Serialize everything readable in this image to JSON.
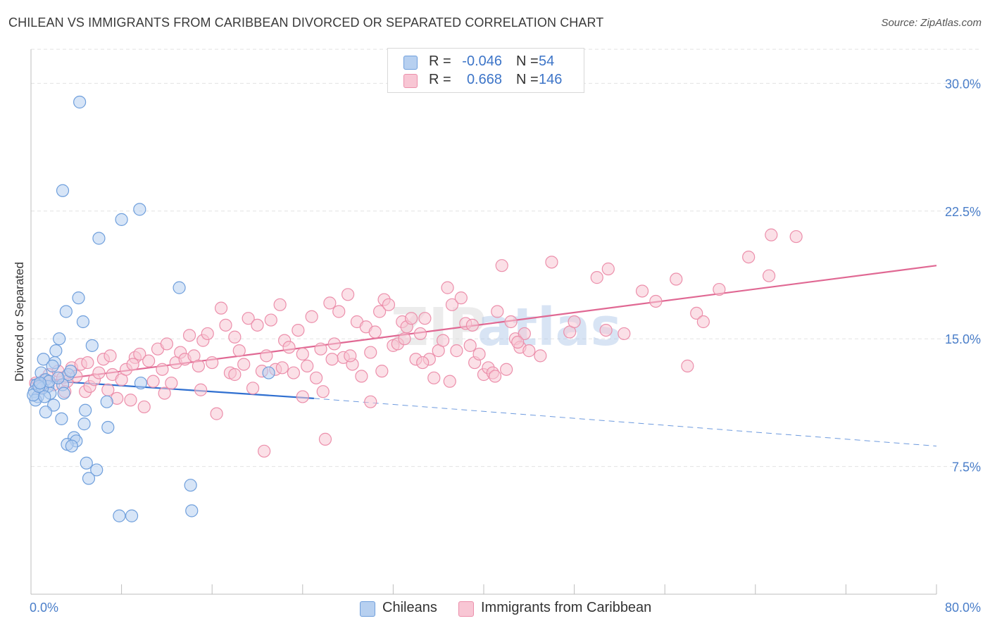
{
  "header": {
    "title": "CHILEAN VS IMMIGRANTS FROM CARIBBEAN DIVORCED OR SEPARATED CORRELATION CHART",
    "source": "Source: ZipAtlas.com"
  },
  "legend_top": {
    "rows": [
      {
        "r_label": "R =",
        "r_value": "-0.046",
        "n_label": "N =",
        "n_value": "54"
      },
      {
        "r_label": "R =",
        "r_value": "0.668",
        "n_label": "N =",
        "n_value": "146"
      }
    ]
  },
  "legend_bottom": {
    "items": [
      {
        "label": "Chileans"
      },
      {
        "label": "Immigrants from Caribbean"
      }
    ]
  },
  "watermark": {
    "part1": "ZIP",
    "part2": "atlas"
  },
  "chart_data": {
    "type": "scatter",
    "title": "CHILEAN VS IMMIGRANTS FROM CARIBBEAN DIVORCED OR SEPARATED CORRELATION CHART",
    "xlabel": "",
    "ylabel": "Divorced or Separated",
    "xlim": [
      0,
      80
    ],
    "ylim": [
      0,
      32
    ],
    "x_tick_labels": [
      "0.0%",
      "80.0%"
    ],
    "y_ticks": [
      7.5,
      15.0,
      22.5,
      30.0
    ],
    "y_tick_labels": [
      "7.5%",
      "15.0%",
      "22.5%",
      "30.0%"
    ],
    "grid": true,
    "legend_position": "bottom",
    "colors": {
      "chileans_fill": "#b7d0f0",
      "chileans_stroke": "#6f9fdc",
      "chileans_line": "#2f6fd0",
      "caribbean_fill": "#f8c6d4",
      "caribbean_stroke": "#ec8fab",
      "caribbean_line": "#e06893",
      "tick_text": "#4a7ec9"
    },
    "series": [
      {
        "name": "Chileans",
        "r": -0.046,
        "n": 54,
        "trend": {
          "solid": [
            [
              0,
              12.6
            ],
            [
              25,
              11.5
            ]
          ],
          "dashed": [
            [
              25,
              11.5
            ],
            [
              80,
              8.7
            ]
          ]
        },
        "points": [
          [
            4.3,
            28.9
          ],
          [
            2.8,
            23.7
          ],
          [
            9.6,
            22.6
          ],
          [
            8.0,
            22.0
          ],
          [
            6.0,
            20.9
          ],
          [
            13.1,
            18.0
          ],
          [
            4.2,
            17.4
          ],
          [
            3.1,
            16.6
          ],
          [
            4.6,
            16.0
          ],
          [
            2.5,
            15.0
          ],
          [
            5.4,
            14.6
          ],
          [
            2.2,
            14.3
          ],
          [
            1.1,
            13.8
          ],
          [
            2.1,
            13.6
          ],
          [
            1.9,
            13.4
          ],
          [
            0.9,
            13.0
          ],
          [
            3.3,
            12.9
          ],
          [
            1.3,
            12.6
          ],
          [
            0.5,
            12.3
          ],
          [
            1.5,
            12.2
          ],
          [
            2.8,
            12.3
          ],
          [
            9.7,
            12.4
          ],
          [
            0.3,
            11.9
          ],
          [
            1.7,
            11.8
          ],
          [
            2.9,
            11.8
          ],
          [
            0.6,
            11.6
          ],
          [
            0.4,
            11.4
          ],
          [
            6.7,
            11.3
          ],
          [
            2.0,
            11.1
          ],
          [
            4.8,
            10.8
          ],
          [
            1.3,
            10.7
          ],
          [
            2.7,
            10.3
          ],
          [
            4.7,
            10.0
          ],
          [
            6.8,
            9.8
          ],
          [
            3.8,
            9.2
          ],
          [
            4.0,
            9.0
          ],
          [
            3.2,
            8.8
          ],
          [
            3.6,
            8.7
          ],
          [
            4.9,
            7.7
          ],
          [
            5.8,
            7.3
          ],
          [
            5.1,
            6.8
          ],
          [
            14.1,
            6.4
          ],
          [
            7.8,
            4.6
          ],
          [
            8.9,
            4.6
          ],
          [
            14.2,
            4.9
          ],
          [
            21.0,
            13.0
          ],
          [
            1.0,
            12.1
          ],
          [
            0.2,
            11.7
          ],
          [
            1.6,
            12.5
          ],
          [
            0.7,
            12.2
          ],
          [
            2.4,
            12.7
          ],
          [
            3.5,
            13.1
          ],
          [
            1.2,
            11.6
          ],
          [
            0.8,
            12.4
          ]
        ]
      },
      {
        "name": "Immigrants from Caribbean",
        "r": 0.668,
        "n": 146,
        "trend": {
          "solid": [
            [
              0,
              12.4
            ],
            [
              80,
              19.3
            ]
          ]
        },
        "points": [
          [
            0.4,
            12.4
          ],
          [
            0.8,
            12.1
          ],
          [
            1.2,
            12.6
          ],
          [
            1.6,
            12.9
          ],
          [
            2.0,
            12.3
          ],
          [
            2.4,
            13.1
          ],
          [
            2.8,
            12.7
          ],
          [
            3.2,
            12.5
          ],
          [
            3.6,
            13.3
          ],
          [
            4.0,
            12.8
          ],
          [
            4.4,
            13.5
          ],
          [
            4.8,
            11.9
          ],
          [
            5.2,
            12.2
          ],
          [
            5.6,
            12.6
          ],
          [
            6.0,
            13.0
          ],
          [
            6.4,
            13.8
          ],
          [
            6.8,
            12.0
          ],
          [
            7.2,
            12.9
          ],
          [
            7.6,
            11.5
          ],
          [
            8.0,
            12.6
          ],
          [
            8.4,
            13.2
          ],
          [
            8.8,
            11.4
          ],
          [
            9.2,
            13.9
          ],
          [
            9.6,
            14.1
          ],
          [
            10.0,
            11.0
          ],
          [
            10.4,
            13.7
          ],
          [
            10.8,
            12.5
          ],
          [
            11.2,
            14.4
          ],
          [
            11.6,
            13.2
          ],
          [
            12.0,
            14.7
          ],
          [
            12.4,
            12.4
          ],
          [
            12.8,
            13.6
          ],
          [
            13.2,
            14.2
          ],
          [
            13.6,
            13.8
          ],
          [
            14.0,
            15.2
          ],
          [
            14.4,
            14.0
          ],
          [
            14.8,
            13.4
          ],
          [
            15.2,
            14.9
          ],
          [
            15.6,
            15.3
          ],
          [
            16.0,
            13.6
          ],
          [
            16.4,
            10.6
          ],
          [
            16.8,
            16.8
          ],
          [
            17.2,
            15.8
          ],
          [
            17.6,
            13.0
          ],
          [
            18.0,
            15.1
          ],
          [
            18.4,
            14.3
          ],
          [
            18.8,
            13.5
          ],
          [
            19.2,
            16.2
          ],
          [
            19.6,
            12.1
          ],
          [
            20.0,
            15.8
          ],
          [
            20.4,
            13.1
          ],
          [
            20.8,
            14.0
          ],
          [
            21.2,
            16.1
          ],
          [
            21.6,
            13.2
          ],
          [
            22.0,
            17.0
          ],
          [
            22.4,
            14.9
          ],
          [
            22.8,
            14.5
          ],
          [
            23.2,
            13.0
          ],
          [
            23.6,
            15.5
          ],
          [
            24.0,
            14.1
          ],
          [
            24.4,
            13.4
          ],
          [
            24.8,
            16.3
          ],
          [
            25.2,
            12.7
          ],
          [
            25.6,
            14.4
          ],
          [
            26.0,
            9.1
          ],
          [
            26.4,
            17.1
          ],
          [
            26.8,
            14.7
          ],
          [
            27.2,
            16.6
          ],
          [
            27.6,
            13.9
          ],
          [
            28.0,
            17.6
          ],
          [
            28.4,
            13.5
          ],
          [
            28.8,
            16.0
          ],
          [
            29.2,
            12.8
          ],
          [
            29.6,
            15.7
          ],
          [
            30.0,
            14.2
          ],
          [
            30.4,
            15.4
          ],
          [
            30.8,
            16.6
          ],
          [
            31.2,
            17.3
          ],
          [
            31.6,
            17.0
          ],
          [
            32.0,
            14.6
          ],
          [
            32.4,
            14.7
          ],
          [
            32.8,
            16.0
          ],
          [
            33.2,
            15.7
          ],
          [
            33.6,
            16.2
          ],
          [
            34.0,
            13.8
          ],
          [
            34.4,
            15.3
          ],
          [
            34.8,
            16.2
          ],
          [
            35.2,
            13.8
          ],
          [
            35.6,
            12.7
          ],
          [
            36.0,
            14.3
          ],
          [
            36.4,
            14.9
          ],
          [
            36.8,
            18.0
          ],
          [
            37.2,
            17.0
          ],
          [
            37.6,
            14.3
          ],
          [
            38.0,
            17.4
          ],
          [
            38.4,
            15.9
          ],
          [
            38.8,
            14.6
          ],
          [
            39.2,
            13.6
          ],
          [
            39.6,
            14.1
          ],
          [
            40.0,
            12.9
          ],
          [
            40.4,
            13.3
          ],
          [
            40.8,
            13.0
          ],
          [
            41.2,
            16.6
          ],
          [
            41.6,
            19.3
          ],
          [
            42.0,
            13.2
          ],
          [
            42.4,
            16.0
          ],
          [
            42.8,
            15.0
          ],
          [
            43.2,
            14.5
          ],
          [
            43.6,
            15.3
          ],
          [
            44.0,
            14.3
          ],
          [
            46.0,
            19.5
          ],
          [
            47.6,
            15.4
          ],
          [
            48.0,
            16.0
          ],
          [
            50.0,
            18.6
          ],
          [
            50.8,
            15.5
          ],
          [
            51.0,
            19.1
          ],
          [
            52.4,
            15.3
          ],
          [
            54.0,
            17.8
          ],
          [
            55.2,
            17.2
          ],
          [
            57.0,
            18.5
          ],
          [
            58.0,
            13.4
          ],
          [
            58.8,
            16.5
          ],
          [
            59.4,
            16.0
          ],
          [
            60.8,
            17.9
          ],
          [
            63.4,
            19.8
          ],
          [
            65.2,
            18.7
          ],
          [
            65.4,
            21.1
          ],
          [
            67.6,
            21.0
          ],
          [
            20.6,
            8.4
          ],
          [
            24.0,
            11.6
          ],
          [
            25.8,
            11.9
          ],
          [
            30.0,
            11.3
          ],
          [
            11.8,
            11.8
          ],
          [
            7.0,
            14.0
          ],
          [
            9.0,
            13.5
          ],
          [
            15.0,
            12.0
          ],
          [
            18.0,
            12.9
          ],
          [
            22.2,
            13.3
          ],
          [
            26.6,
            13.8
          ],
          [
            28.2,
            14.0
          ],
          [
            31.0,
            13.1
          ],
          [
            33.0,
            15.0
          ],
          [
            34.6,
            13.6
          ],
          [
            37.0,
            12.5
          ],
          [
            39.0,
            15.8
          ],
          [
            41.0,
            12.8
          ],
          [
            43.0,
            14.8
          ],
          [
            45.0,
            14.0
          ],
          [
            3.0,
            11.9
          ],
          [
            5.0,
            13.6
          ]
        ]
      }
    ]
  }
}
